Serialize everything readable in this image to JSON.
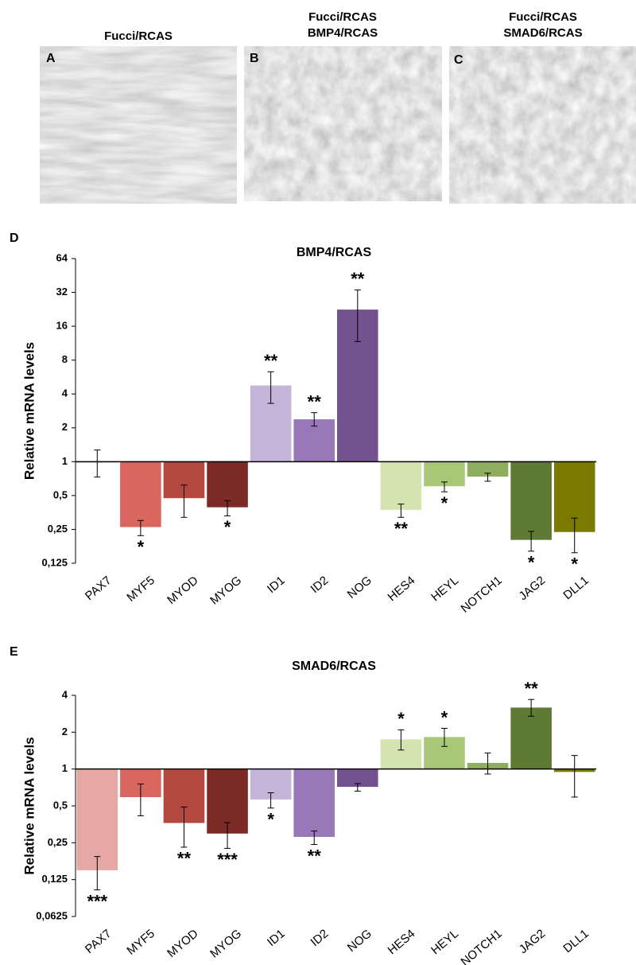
{
  "panels": [
    {
      "label": "A",
      "title": [
        "Fucci/RCAS"
      ]
    },
    {
      "label": "B",
      "title": [
        "Fucci/RCAS",
        "BMP4/RCAS"
      ]
    },
    {
      "label": "C",
      "title": [
        "Fucci/RCAS",
        "SMAD6/RCAS"
      ]
    }
  ],
  "chart_data": [
    {
      "type": "bar",
      "panel": "D",
      "title": "BMP4/RCAS",
      "y_label": "Relative mRNA levels",
      "yscale": "log",
      "log_base": 2,
      "categories": [
        "PAX7",
        "MYF5",
        "MYOD",
        "MYOG",
        "ID1",
        "ID2",
        "NOG",
        "HES4",
        "HEYL",
        "NOTCH1",
        "JAG2",
        "DLL1"
      ],
      "values": [
        1.0,
        0.26,
        0.47,
        0.39,
        4.8,
        2.4,
        22.7,
        0.37,
        0.6,
        0.73,
        0.2,
        0.235
      ],
      "errors": [
        0.27,
        0.04,
        0.15,
        0.06,
        1.5,
        0.33,
        11,
        0.05,
        0.06,
        0.06,
        0.04,
        0.08
      ],
      "significance": [
        null,
        "*",
        null,
        "*",
        "**",
        "**",
        "**",
        "**",
        "*",
        null,
        "*",
        "*"
      ],
      "colors": [
        "#e8907c",
        "#d9665f",
        "#b4473f",
        "#7b2a26",
        "#c6b4d8",
        "#9878b8",
        "#735290",
        "#d4e4b0",
        "#a8c878",
        "#8fad5e",
        "#5e7a35",
        "#7a7a00"
      ],
      "ylim": [
        0.125,
        64
      ],
      "yticks": [
        {
          "value": 0.125,
          "label": "0,125"
        },
        {
          "value": 0.25,
          "label": "0,25"
        },
        {
          "value": 0.5,
          "label": "0,5"
        },
        1,
        2,
        4,
        8,
        16,
        32,
        64
      ]
    },
    {
      "type": "bar",
      "panel": "E",
      "title": "SMAD6/RCAS",
      "y_label": "Relative mRNA levels",
      "yscale": "log",
      "log_base": 2,
      "categories": [
        "PAX7",
        "MYF5",
        "MYOD",
        "MYOG",
        "ID1",
        "ID2",
        "NOG",
        "HES4",
        "HEYL",
        "NOTCH1",
        "JAG2",
        "DLL1"
      ],
      "values": [
        0.148,
        0.585,
        0.36,
        0.295,
        0.56,
        0.277,
        0.71,
        1.76,
        1.84,
        1.13,
        3.2,
        0.94
      ],
      "errors": [
        0.045,
        0.17,
        0.13,
        0.07,
        0.08,
        0.035,
        0.05,
        0.33,
        0.31,
        0.22,
        0.5,
        0.35
      ],
      "significance": [
        "***",
        null,
        "**",
        "***",
        "*",
        "**",
        null,
        "*",
        "*",
        null,
        "**",
        null
      ],
      "colors": [
        "#e6a8a4",
        "#d9665f",
        "#b4473f",
        "#7b2a26",
        "#c6b4d8",
        "#9878b8",
        "#735290",
        "#d4e4b0",
        "#a8c878",
        "#8fad5e",
        "#5e7a35",
        "#7a7a00"
      ],
      "ylim": [
        0.0625,
        4
      ],
      "yticks": [
        {
          "value": 0.0625,
          "label": "0,0625"
        },
        {
          "value": 0.125,
          "label": "0,125"
        },
        {
          "value": 0.25,
          "label": "0,25"
        },
        {
          "value": 0.5,
          "label": "0,5"
        },
        1,
        2,
        4
      ]
    }
  ]
}
